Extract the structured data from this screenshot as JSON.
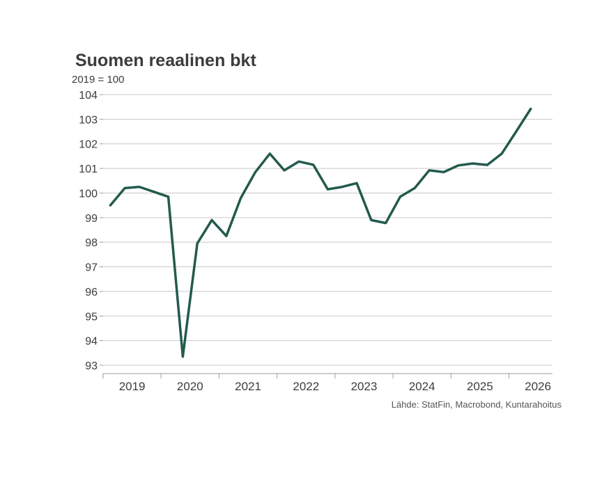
{
  "chart_data": {
    "type": "line",
    "title": "Suomen reaalinen bkt",
    "unit_label": "2019 = 100",
    "source": "Lähde: StatFin, Macrobond, Kuntarahoitus",
    "x_categories": [
      "2019",
      "2020",
      "2021",
      "2022",
      "2023",
      "2024",
      "2025",
      "2026"
    ],
    "y_ticks": [
      "104",
      "103",
      "102",
      "101",
      "100",
      "99",
      "98",
      "97",
      "96",
      "95",
      "94",
      "93"
    ],
    "ylim": [
      93,
      104
    ],
    "xlim": [
      2019.0,
      2026.75
    ],
    "grid": true,
    "legend": "none",
    "line_color": "#235a4d",
    "series": [
      {
        "x": [
          2019.125,
          2019.375,
          2019.625,
          2019.875,
          2020.125,
          2020.375,
          2020.625,
          2020.875,
          2021.125,
          2021.375,
          2021.625,
          2021.875,
          2022.125,
          2022.375,
          2022.625,
          2022.875,
          2023.125,
          2023.375,
          2023.625,
          2023.875,
          2024.125,
          2024.375,
          2024.625,
          2024.875,
          2025.125,
          2025.375,
          2025.625,
          2025.875,
          2026.125,
          2026.375
        ],
        "values": [
          99.5,
          100.2,
          100.25,
          100.05,
          99.85,
          93.35,
          97.95,
          98.9,
          98.25,
          99.8,
          100.85,
          101.6,
          100.92,
          101.28,
          101.15,
          100.15,
          100.25,
          100.4,
          98.9,
          98.78,
          99.85,
          100.2,
          100.92,
          100.85,
          101.12,
          101.2,
          101.14,
          101.6,
          102.5,
          103.42
        ]
      }
    ]
  }
}
